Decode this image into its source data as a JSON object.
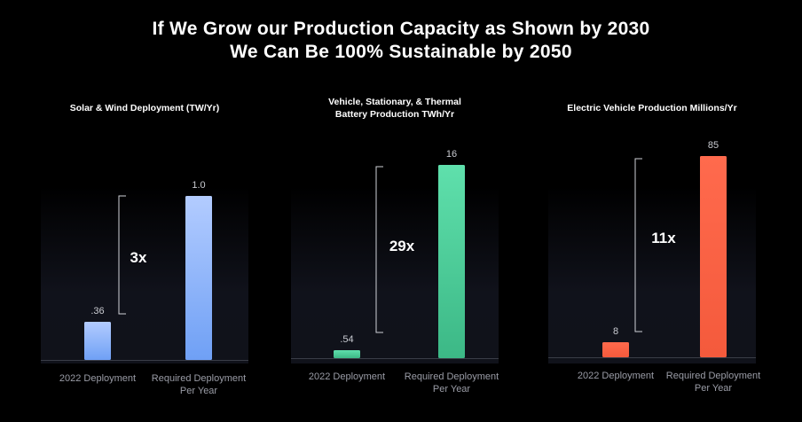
{
  "title": {
    "line1": "If We Grow our Production Capacity as Shown by 2030",
    "line2": "We Can Be 100% Sustainable by 2050"
  },
  "chart_data": [
    {
      "type": "bar",
      "title": "Solar & Wind Deployment (TW/Yr)",
      "categories": [
        "2022 Deployment",
        "Required Deployment Per Year"
      ],
      "category_lines": [
        [
          "2022 Deployment"
        ],
        [
          "Required Deployment",
          "Per Year"
        ]
      ],
      "values": [
        0.36,
        1.0
      ],
      "value_labels": [
        ".36",
        "1.0"
      ],
      "multiplier_label": "3x",
      "colors": {
        "bar_top": "#b3ccff",
        "bar_bottom": "#6fa0f5"
      }
    },
    {
      "type": "bar",
      "title": "Vehicle, Stationary, & Thermal Battery Production TWh/Yr",
      "title_lines": [
        "Vehicle, Stationary, & Thermal",
        "Battery Production TWh/Yr"
      ],
      "categories": [
        "2022 Deployment",
        "Required Deployment Per Year"
      ],
      "category_lines": [
        [
          "2022 Deployment"
        ],
        [
          "Required Deployment",
          "Per Year"
        ]
      ],
      "values": [
        0.54,
        16
      ],
      "value_labels": [
        ".54",
        "16"
      ],
      "multiplier_label": "29x",
      "colors": {
        "bar_top": "#5fe0ac",
        "bar_bottom": "#3cb886"
      }
    },
    {
      "type": "bar",
      "title": "Electric Vehicle Production Millions/Yr",
      "categories": [
        "2022 Deployment",
        "Required Deployment Per Year"
      ],
      "category_lines": [
        [
          "2022 Deployment"
        ],
        [
          "Required Deployment",
          "Per Year"
        ]
      ],
      "values": [
        8,
        85
      ],
      "value_labels": [
        "8",
        "85"
      ],
      "multiplier_label": "11x",
      "colors": {
        "bar_top": "#ff6a4d",
        "bar_bottom": "#f45a3c"
      }
    }
  ]
}
